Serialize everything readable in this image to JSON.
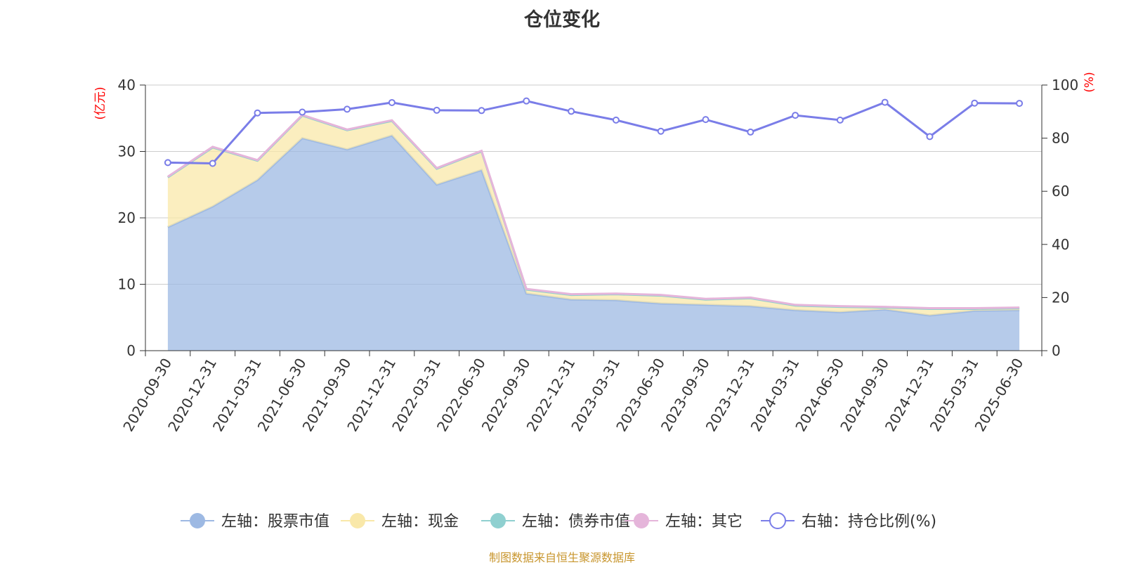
{
  "chart_data": {
    "type": "area",
    "title": "仓位变化",
    "source": "制图数据来自恒生聚源数据库",
    "y_left_unit": "(亿元)",
    "y_right_unit": "(%)",
    "ylim_left": [
      0,
      40
    ],
    "ylim_right": [
      0,
      100
    ],
    "y_left_ticks": [
      "0",
      "10",
      "20",
      "30",
      "40"
    ],
    "y_right_ticks": [
      "0",
      "20",
      "40",
      "60",
      "80",
      "100"
    ],
    "grid": true,
    "legend_position": "bottom",
    "x": [
      "2020-09-30",
      "2020-12-31",
      "2021-03-31",
      "2021-06-30",
      "2021-09-30",
      "2021-12-31",
      "2022-03-31",
      "2022-06-30",
      "2022-09-30",
      "2022-12-31",
      "2023-03-31",
      "2023-06-30",
      "2023-09-30",
      "2023-12-31",
      "2024-03-31",
      "2024-06-30",
      "2024-09-30",
      "2024-12-31",
      "2025-03-31",
      "2025-06-30"
    ],
    "series": [
      {
        "name": "左轴：股票市值",
        "axis": "left",
        "stack": true,
        "color": "#9db9e3",
        "values": [
          18.6,
          21.7,
          25.7,
          32.0,
          30.3,
          32.4,
          25.0,
          27.2,
          8.6,
          7.7,
          7.6,
          7.1,
          6.9,
          6.7,
          6.1,
          5.8,
          6.2,
          5.3,
          6.0,
          6.1
        ]
      },
      {
        "name": "左轴：现金",
        "axis": "left",
        "stack": true,
        "color": "#f9e8a9",
        "values": [
          7.5,
          8.9,
          2.9,
          3.4,
          2.9,
          2.2,
          2.4,
          2.8,
          0.6,
          0.7,
          0.9,
          1.2,
          0.8,
          1.2,
          0.7,
          0.8,
          0.3,
          1.0,
          0.3,
          0.3
        ]
      },
      {
        "name": "左轴：债券市值",
        "axis": "left",
        "stack": true,
        "color": "#8fd0d0",
        "values": [
          0,
          0,
          0,
          0,
          0,
          0,
          0,
          0,
          0,
          0,
          0,
          0,
          0,
          0,
          0,
          0,
          0,
          0,
          0,
          0
        ]
      },
      {
        "name": "左轴：其它",
        "axis": "left",
        "stack": true,
        "color": "#e5b5da",
        "values": [
          0.1,
          0.1,
          0.1,
          0.1,
          0.1,
          0.1,
          0.1,
          0.1,
          0.1,
          0.1,
          0.1,
          0.1,
          0.1,
          0.1,
          0.1,
          0.1,
          0.1,
          0.1,
          0.1,
          0.1
        ]
      },
      {
        "name": "右轴：持仓比例(%)",
        "axis": "right",
        "type": "line",
        "color": "#7a7de8",
        "values": [
          70.8,
          70.5,
          89.5,
          89.8,
          90.9,
          93.4,
          90.5,
          90.4,
          94.0,
          90.1,
          86.8,
          82.6,
          87.0,
          82.3,
          88.6,
          86.8,
          93.5,
          80.6,
          93.2,
          93.1
        ]
      }
    ]
  }
}
